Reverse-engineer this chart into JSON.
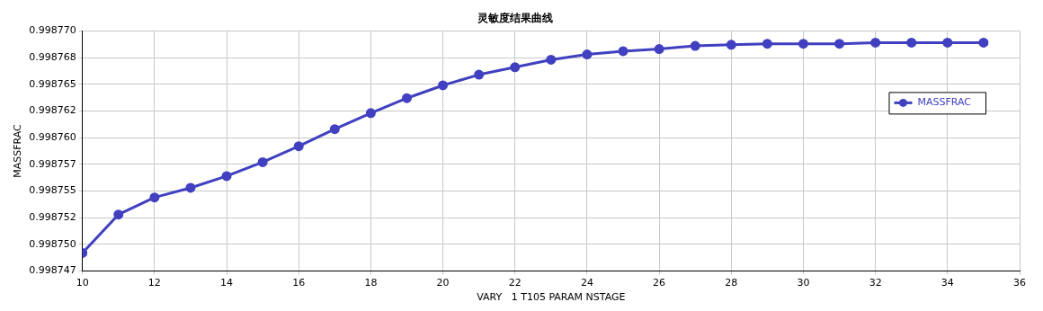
{
  "chart_data": {
    "type": "line",
    "title": "灵敏度结果曲线",
    "xlabel": "VARY   1 T105 PARAM NSTAGE",
    "ylabel": "MASSFRAC",
    "x": [
      10,
      11,
      12,
      13,
      14,
      15,
      16,
      17,
      18,
      19,
      20,
      21,
      22,
      23,
      24,
      25,
      26,
      27,
      28,
      29,
      30,
      31,
      32,
      33,
      34,
      35
    ],
    "series": [
      {
        "name": "MASSFRAC",
        "color": "#4040c0",
        "values": [
          0.9987492,
          0.9987528,
          0.9987544,
          0.9987553,
          0.9987564,
          0.9987577,
          0.9987592,
          0.9987608,
          0.9987623,
          0.9987637,
          0.9987649,
          0.9987659,
          0.9987666,
          0.9987673,
          0.9987678,
          0.9987681,
          0.9987683,
          0.9987686,
          0.9987687,
          0.9987688,
          0.9987688,
          0.9987688,
          0.9987689,
          0.9987689,
          0.9987689,
          0.9987689
        ]
      }
    ],
    "xlim": [
      10,
      36
    ],
    "xticks": [
      10,
      12,
      14,
      16,
      18,
      20,
      22,
      24,
      26,
      28,
      30,
      32,
      34,
      36
    ],
    "ylim": [
      0.9987475,
      0.99877
    ],
    "yticks": [
      {
        "value": 0.9987475,
        "label": "0.998747"
      },
      {
        "value": 0.99875,
        "label": "0.998750"
      },
      {
        "value": 0.9987525,
        "label": "0.998752"
      },
      {
        "value": 0.998755,
        "label": "0.998755"
      },
      {
        "value": 0.9987575,
        "label": "0.998757"
      },
      {
        "value": 0.99876,
        "label": "0.998760"
      },
      {
        "value": 0.9987625,
        "label": "0.998762"
      },
      {
        "value": 0.998765,
        "label": "0.998765"
      },
      {
        "value": 0.9987675,
        "label": "0.998768"
      },
      {
        "value": 0.99877,
        "label": "0.998770"
      }
    ],
    "grid": true,
    "legend": "top right",
    "marker": "circle",
    "line_style": "solid"
  }
}
